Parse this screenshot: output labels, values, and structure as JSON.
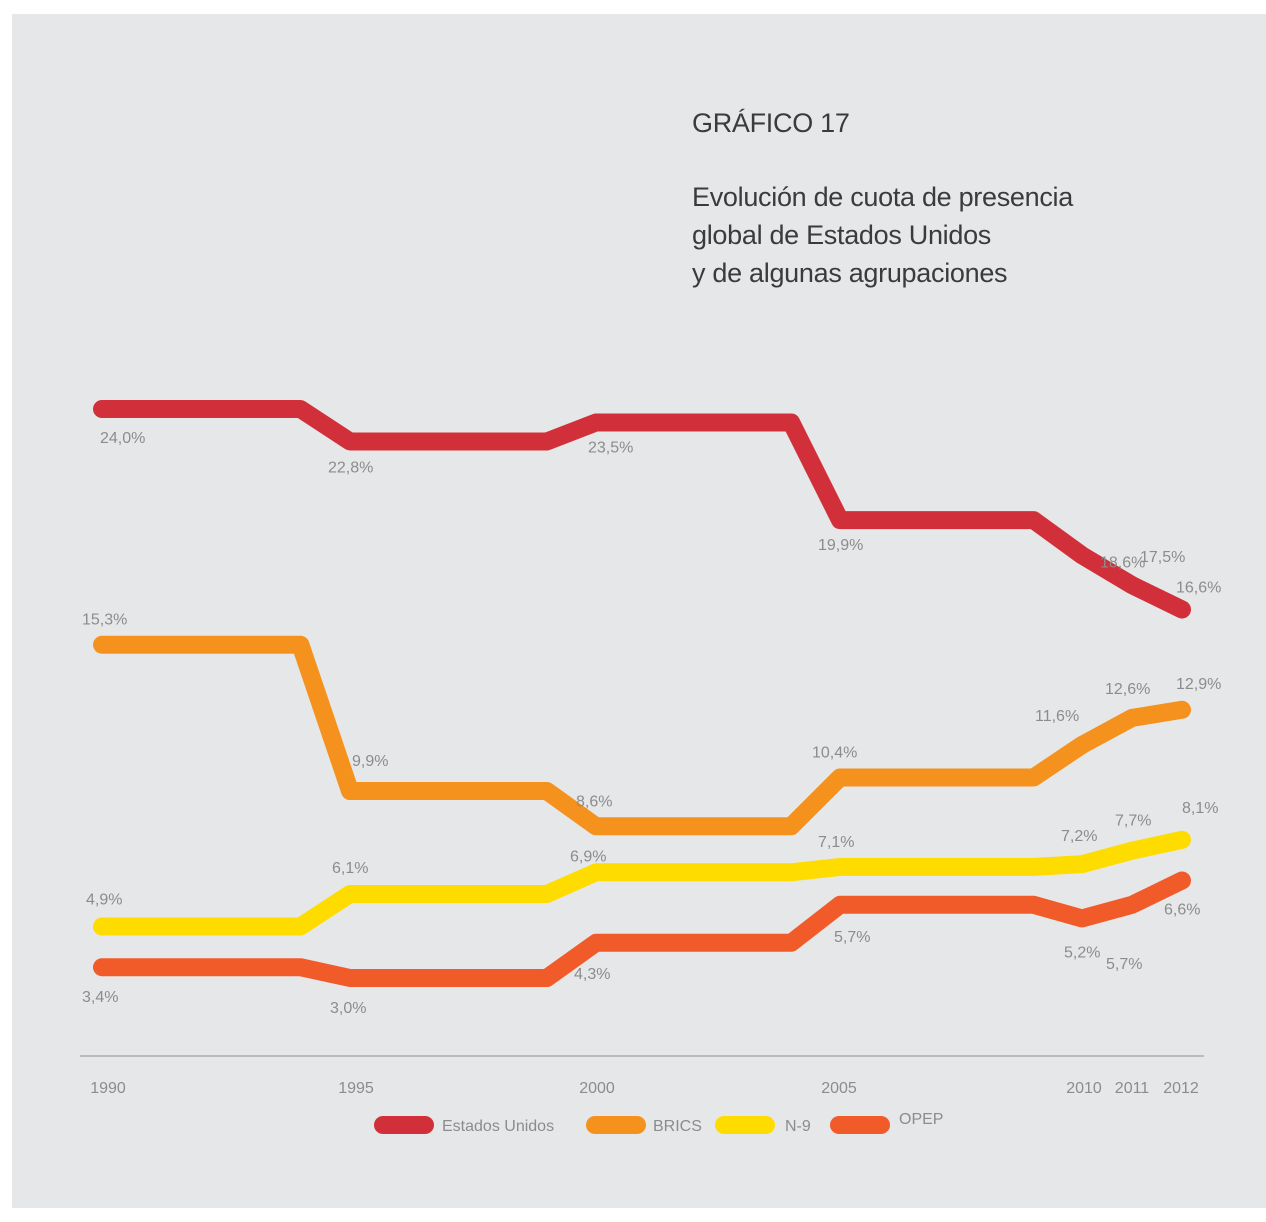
{
  "chart_data": {
    "type": "line",
    "chart_number": "GRÁFICO 17",
    "title_lines": [
      "Evolución de cuota de presencia",
      "global de Estados Unidos",
      "y de algunas agrupaciones"
    ],
    "x": [
      1990,
      1991,
      1992,
      1993,
      1994,
      1995,
      1996,
      1997,
      1998,
      1999,
      2000,
      2001,
      2002,
      2003,
      2004,
      2005,
      2006,
      2007,
      2008,
      2009,
      2010,
      2011,
      2012
    ],
    "x_ticks": [
      "1990",
      "1995",
      "2000",
      "2005",
      "2010",
      "2011",
      "2012"
    ],
    "series": [
      {
        "name": "Estados Unidos",
        "color": "#d1303a",
        "values": [
          24.0,
          24.0,
          24.0,
          24.0,
          24.0,
          22.8,
          22.8,
          22.8,
          22.8,
          22.8,
          23.5,
          23.5,
          23.5,
          23.5,
          23.5,
          19.9,
          19.9,
          19.9,
          19.9,
          19.9,
          18.6,
          17.5,
          16.6
        ],
        "labels": [
          {
            "year": 1990,
            "text": "24,0%"
          },
          {
            "year": 1995,
            "text": "22,8%"
          },
          {
            "year": 2000,
            "text": "23,5%"
          },
          {
            "year": 2005,
            "text": "19,9%"
          },
          {
            "year": 2010,
            "text": "18,6%"
          },
          {
            "year": 2011,
            "text": "17,5%"
          },
          {
            "year": 2012,
            "text": "16,6%"
          }
        ]
      },
      {
        "name": "BRICS",
        "color": "#f5921e",
        "values": [
          15.3,
          15.3,
          15.3,
          15.3,
          15.3,
          9.9,
          9.9,
          9.9,
          9.9,
          9.9,
          8.6,
          8.6,
          8.6,
          8.6,
          8.6,
          10.4,
          10.4,
          10.4,
          10.4,
          10.4,
          11.6,
          12.6,
          12.9
        ],
        "labels": [
          {
            "year": 1990,
            "text": "15,3%"
          },
          {
            "year": 1995,
            "text": "9,9%"
          },
          {
            "year": 2000,
            "text": "8,6%"
          },
          {
            "year": 2005,
            "text": "10,4%"
          },
          {
            "year": 2010,
            "text": "11,6%"
          },
          {
            "year": 2011,
            "text": "12,6%"
          },
          {
            "year": 2012,
            "text": "12,9%"
          }
        ]
      },
      {
        "name": "N-9",
        "color": "#ffdc00",
        "values": [
          4.9,
          4.9,
          4.9,
          4.9,
          4.9,
          6.1,
          6.1,
          6.1,
          6.1,
          6.1,
          6.9,
          6.9,
          6.9,
          6.9,
          6.9,
          7.1,
          7.1,
          7.1,
          7.1,
          7.1,
          7.2,
          7.7,
          8.1
        ],
        "labels": [
          {
            "year": 1990,
            "text": "4,9%"
          },
          {
            "year": 1995,
            "text": "6,1%"
          },
          {
            "year": 2000,
            "text": "6,9%"
          },
          {
            "year": 2005,
            "text": "7,1%"
          },
          {
            "year": 2010,
            "text": "7,2%"
          },
          {
            "year": 2011,
            "text": "7,7%"
          },
          {
            "year": 2012,
            "text": "8,1%"
          }
        ]
      },
      {
        "name": "OPEP",
        "color": "#f15a29",
        "values": [
          3.4,
          3.4,
          3.4,
          3.4,
          3.4,
          3.0,
          3.0,
          3.0,
          3.0,
          3.0,
          4.3,
          4.3,
          4.3,
          4.3,
          4.3,
          5.7,
          5.7,
          5.7,
          5.7,
          5.7,
          5.2,
          5.7,
          6.6
        ],
        "labels": [
          {
            "year": 1990,
            "text": "3,4%"
          },
          {
            "year": 1995,
            "text": "3,0%"
          },
          {
            "year": 2000,
            "text": "4,3%"
          },
          {
            "year": 2005,
            "text": "5,7%"
          },
          {
            "year": 2010,
            "text": "5,2%"
          },
          {
            "year": 2011,
            "text": "5,7%"
          },
          {
            "year": 2012,
            "text": "6,6%"
          }
        ]
      }
    ],
    "legend": "bottom-center",
    "grid": false
  }
}
